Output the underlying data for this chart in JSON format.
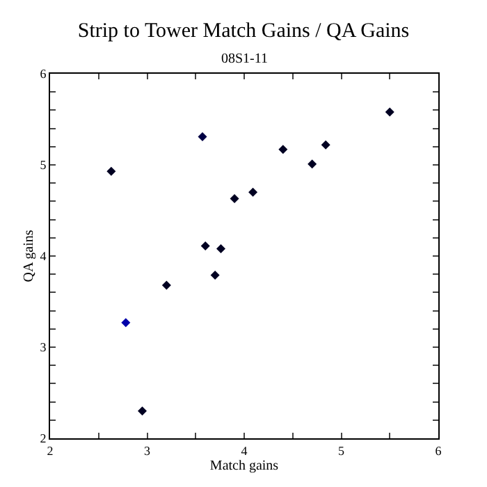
{
  "chart_data": {
    "type": "scatter",
    "title": "Strip to Tower Match Gains / QA Gains",
    "subtitle": "08S1-11",
    "xlabel": "Match gains",
    "ylabel": "QA gains",
    "x": [
      2.63,
      2.78,
      2.95,
      3.2,
      3.57,
      3.6,
      3.7,
      3.76,
      3.9,
      4.09,
      4.4,
      4.7,
      4.84,
      5.5
    ],
    "values": [
      4.93,
      3.27,
      2.3,
      3.68,
      5.31,
      4.11,
      3.79,
      4.08,
      4.63,
      4.7,
      5.17,
      5.01,
      5.22,
      5.58
    ],
    "colors": [
      "#000022",
      "#0000aa",
      "#000022",
      "#000022",
      "#000044",
      "#000022",
      "#000022",
      "#000022",
      "#000022",
      "#000022",
      "#000022",
      "#000022",
      "#000022",
      "#000022"
    ],
    "marker": "diamond",
    "xlim": [
      2,
      6
    ],
    "xticks": [
      2,
      {
        "value": 2.5,
        "label": null
      },
      3,
      {
        "value": 3.5,
        "label": null
      },
      4,
      {
        "value": 4.5,
        "label": null
      },
      5,
      {
        "value": 5.5,
        "label": null
      },
      6
    ],
    "ylim": [
      2,
      6
    ],
    "yticks": [
      2,
      {
        "value": 2.2,
        "label": null
      },
      {
        "value": 2.4,
        "label": null
      },
      {
        "value": 2.6,
        "label": null
      },
      {
        "value": 2.8,
        "label": null
      },
      3,
      {
        "value": 3.2,
        "label": null
      },
      {
        "value": 3.4,
        "label": null
      },
      {
        "value": 3.6,
        "label": null
      },
      {
        "value": 3.8,
        "label": null
      },
      4,
      {
        "value": 4.2,
        "label": null
      },
      {
        "value": 4.4,
        "label": null
      },
      {
        "value": 4.6,
        "label": null
      },
      {
        "value": 4.8,
        "label": null
      },
      5,
      {
        "value": 5.2,
        "label": null
      },
      {
        "value": 5.4,
        "label": null
      },
      {
        "value": 5.6,
        "label": null
      },
      {
        "value": 5.8,
        "label": null
      },
      6
    ]
  }
}
